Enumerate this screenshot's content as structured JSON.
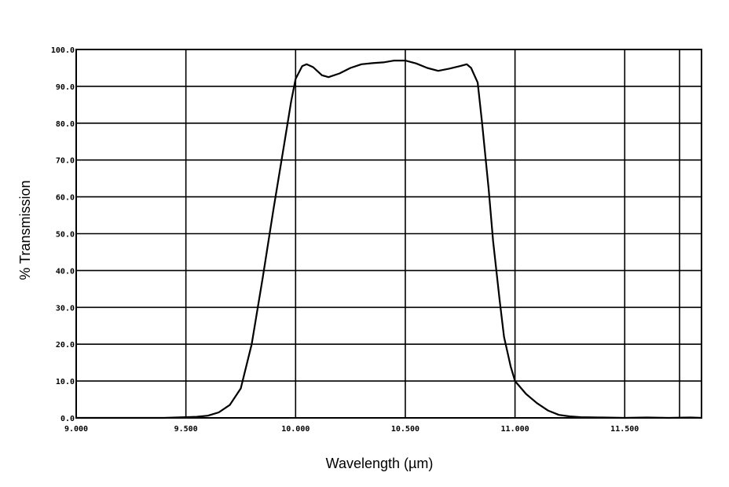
{
  "chart_data": {
    "type": "line",
    "title": "",
    "xlabel": "Wavelength (µm)",
    "ylabel": "% Transmission",
    "xlim": [
      9.0,
      11.85
    ],
    "ylim": [
      0,
      100
    ],
    "grid": true,
    "x_ticks": [
      {
        "value": 9.0,
        "label": "9.000"
      },
      {
        "value": 9.5,
        "label": "9.500"
      },
      {
        "value": 10.0,
        "label": "10.000"
      },
      {
        "value": 10.5,
        "label": "10.500"
      },
      {
        "value": 11.0,
        "label": "11.000"
      },
      {
        "value": 11.5,
        "label": "11.500"
      }
    ],
    "y_ticks": [
      {
        "value": 0,
        "label": "0.0"
      },
      {
        "value": 10,
        "label": "10.0"
      },
      {
        "value": 20,
        "label": "20.0"
      },
      {
        "value": 30,
        "label": "30.0"
      },
      {
        "value": 40,
        "label": "40.0"
      },
      {
        "value": 50,
        "label": "50.0"
      },
      {
        "value": 60,
        "label": "60.0"
      },
      {
        "value": 70,
        "label": "70.0"
      },
      {
        "value": 80,
        "label": "80.0"
      },
      {
        "value": 90,
        "label": "90.0"
      },
      {
        "value": 100,
        "label": "100.0"
      }
    ],
    "series": [
      {
        "color": "#000000",
        "points": [
          [
            9.0,
            0.0
          ],
          [
            9.4,
            0.0
          ],
          [
            9.5,
            0.2
          ],
          [
            9.55,
            0.3
          ],
          [
            9.6,
            0.6
          ],
          [
            9.65,
            1.5
          ],
          [
            9.7,
            3.5
          ],
          [
            9.75,
            8.0
          ],
          [
            9.8,
            20.0
          ],
          [
            9.85,
            38.0
          ],
          [
            9.9,
            57.0
          ],
          [
            9.95,
            75.0
          ],
          [
            9.98,
            86.0
          ],
          [
            10.0,
            92.0
          ],
          [
            10.03,
            95.5
          ],
          [
            10.05,
            96.0
          ],
          [
            10.08,
            95.2
          ],
          [
            10.12,
            93.0
          ],
          [
            10.15,
            92.5
          ],
          [
            10.2,
            93.5
          ],
          [
            10.25,
            95.0
          ],
          [
            10.3,
            96.0
          ],
          [
            10.35,
            96.3
          ],
          [
            10.4,
            96.5
          ],
          [
            10.45,
            97.0
          ],
          [
            10.5,
            97.0
          ],
          [
            10.55,
            96.2
          ],
          [
            10.6,
            95.0
          ],
          [
            10.65,
            94.2
          ],
          [
            10.7,
            94.8
          ],
          [
            10.75,
            95.5
          ],
          [
            10.78,
            96.0
          ],
          [
            10.8,
            95.0
          ],
          [
            10.83,
            91.0
          ],
          [
            10.85,
            80.0
          ],
          [
            10.88,
            62.0
          ],
          [
            10.9,
            48.0
          ],
          [
            10.93,
            32.0
          ],
          [
            10.95,
            22.0
          ],
          [
            10.98,
            14.0
          ],
          [
            11.0,
            10.0
          ],
          [
            11.05,
            6.5
          ],
          [
            11.1,
            4.0
          ],
          [
            11.15,
            2.0
          ],
          [
            11.2,
            0.8
          ],
          [
            11.25,
            0.4
          ],
          [
            11.3,
            0.2
          ],
          [
            11.4,
            0.1
          ],
          [
            11.5,
            0.0
          ],
          [
            11.6,
            0.1
          ],
          [
            11.7,
            0.0
          ],
          [
            11.8,
            0.1
          ],
          [
            11.85,
            0.0
          ]
        ]
      }
    ]
  }
}
